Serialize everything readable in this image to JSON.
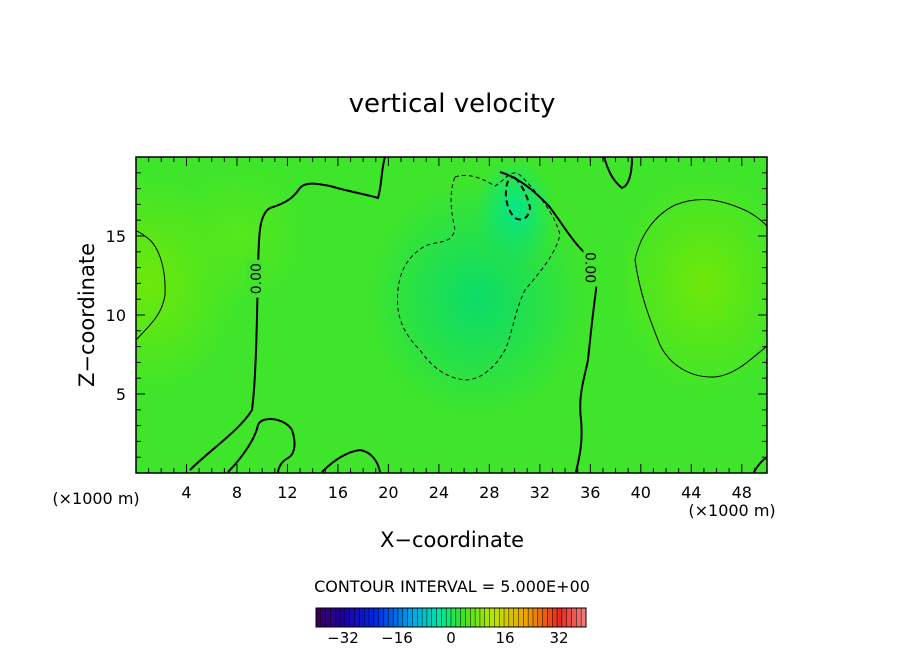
{
  "chart_data": {
    "type": "heatmap",
    "title": "vertical velocity",
    "xlabel": "X−coordinate",
    "ylabel": "Z−coordinate",
    "x_unit_left": "(×1000 m)",
    "x_unit_right": "(×1000 m)",
    "xlim": [
      0,
      50
    ],
    "ylim": [
      0,
      20
    ],
    "x_ticks": [
      4,
      8,
      12,
      16,
      20,
      24,
      28,
      32,
      36,
      40,
      44,
      48
    ],
    "y_ticks": [
      5,
      10,
      15
    ],
    "contour_interval_text": "CONTOUR INTERVAL = 5.000E+00",
    "contour_labels": [
      {
        "text": "0.00",
        "x": 9.5,
        "y": 12.3
      },
      {
        "text": "0.00",
        "x": 36.0,
        "y": 13.0
      }
    ],
    "colorbar": {
      "min": -40,
      "max": 40,
      "ticks": [
        {
          "value": -32,
          "label": "−32"
        },
        {
          "value": -16,
          "label": "−16"
        },
        {
          "value": 0,
          "label": "0"
        },
        {
          "value": 16,
          "label": "16"
        },
        {
          "value": 32,
          "label": "32"
        }
      ]
    },
    "field_features": [
      {
        "kind": "downdraft",
        "x": 30.0,
        "y": 16.5,
        "value": -10
      },
      {
        "kind": "downdraft",
        "x": 27.0,
        "y": 11.0,
        "value": -5
      },
      {
        "kind": "updraft",
        "x": 45.0,
        "y": 12.0,
        "value": 5
      },
      {
        "kind": "updraft",
        "x": 1.0,
        "y": 12.0,
        "value": 5
      },
      {
        "kind": "updraft",
        "x": 8.0,
        "y": 15.0,
        "value": 3
      }
    ]
  }
}
